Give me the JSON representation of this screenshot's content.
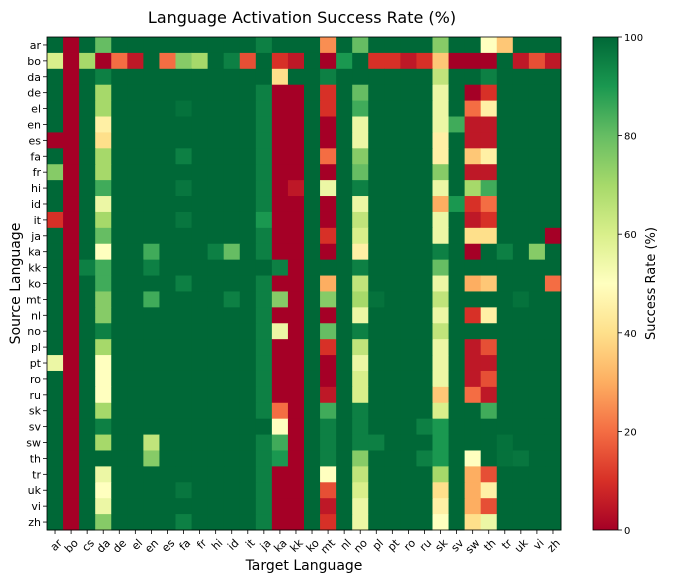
{
  "chart_data": {
    "type": "heatmap",
    "title": "Language Activation Success Rate (%)",
    "xlabel": "Target Language",
    "ylabel": "Source Language",
    "colorbar_label": "Success Rate (%)",
    "colormap": "RdYlGn",
    "vmin": 0,
    "vmax": 100,
    "colorbar_ticks": [
      "0",
      "20",
      "40",
      "60",
      "80",
      "100"
    ],
    "rows": [
      "ar",
      "bo",
      "da",
      "de",
      "el",
      "en",
      "es",
      "fa",
      "fr",
      "hi",
      "id",
      "it",
      "ja",
      "ka",
      "kk",
      "ko",
      "mt",
      "nl",
      "no",
      "pl",
      "pt",
      "ro",
      "ru",
      "sk",
      "sv",
      "sw",
      "th",
      "tr",
      "uk",
      "vi",
      "zh"
    ],
    "cols": [
      "ar",
      "bo",
      "cs",
      "da",
      "de",
      "el",
      "en",
      "es",
      "fa",
      "fr",
      "hi",
      "id",
      "it",
      "ja",
      "ka",
      "kk",
      "ko",
      "mt",
      "nl",
      "no",
      "pl",
      "pt",
      "ro",
      "ru",
      "sk",
      "sv",
      "sw",
      "th",
      "tr",
      "uk",
      "vi",
      "zh"
    ],
    "values": [
      [
        100,
        0,
        100,
        80,
        100,
        100,
        100,
        100,
        100,
        100,
        100,
        100,
        100,
        95,
        100,
        100,
        100,
        25,
        100,
        80,
        100,
        100,
        100,
        100,
        75,
        100,
        100,
        50,
        35,
        100,
        100,
        100
      ],
      [
        60,
        0,
        70,
        0,
        20,
        5,
        100,
        20,
        75,
        70,
        100,
        95,
        15,
        100,
        10,
        5,
        100,
        0,
        90,
        100,
        10,
        10,
        5,
        10,
        35,
        0,
        0,
        0,
        100,
        5,
        15,
        5
      ],
      [
        100,
        0,
        100,
        95,
        100,
        100,
        100,
        100,
        100,
        100,
        100,
        100,
        100,
        100,
        40,
        100,
        100,
        95,
        100,
        100,
        100,
        100,
        100,
        100,
        65,
        100,
        100,
        95,
        100,
        100,
        100,
        100
      ],
      [
        100,
        0,
        100,
        70,
        100,
        100,
        100,
        100,
        100,
        100,
        100,
        100,
        100,
        95,
        0,
        0,
        100,
        10,
        100,
        80,
        100,
        100,
        100,
        100,
        55,
        100,
        0,
        10,
        100,
        100,
        100,
        100
      ],
      [
        100,
        0,
        100,
        70,
        100,
        100,
        100,
        100,
        98,
        100,
        100,
        100,
        100,
        95,
        0,
        0,
        100,
        10,
        100,
        85,
        100,
        100,
        100,
        100,
        55,
        100,
        20,
        45,
        100,
        100,
        100,
        100
      ],
      [
        100,
        0,
        100,
        45,
        100,
        100,
        100,
        100,
        100,
        100,
        100,
        100,
        100,
        95,
        0,
        0,
        100,
        0,
        100,
        55,
        100,
        100,
        100,
        100,
        55,
        85,
        5,
        5,
        100,
        100,
        100,
        100
      ],
      [
        0,
        0,
        100,
        40,
        100,
        100,
        100,
        100,
        100,
        100,
        100,
        100,
        100,
        95,
        0,
        0,
        100,
        0,
        100,
        55,
        100,
        100,
        100,
        100,
        45,
        100,
        5,
        5,
        100,
        100,
        100,
        100
      ],
      [
        100,
        0,
        100,
        70,
        100,
        100,
        100,
        100,
        95,
        100,
        100,
        100,
        100,
        95,
        0,
        0,
        100,
        20,
        100,
        75,
        100,
        100,
        100,
        100,
        45,
        100,
        35,
        45,
        100,
        100,
        100,
        100
      ],
      [
        75,
        0,
        100,
        70,
        100,
        100,
        100,
        100,
        100,
        100,
        100,
        100,
        100,
        95,
        0,
        0,
        100,
        0,
        100,
        80,
        100,
        100,
        100,
        100,
        75,
        100,
        5,
        5,
        100,
        100,
        100,
        100
      ],
      [
        100,
        0,
        100,
        85,
        100,
        100,
        100,
        100,
        97,
        100,
        100,
        100,
        100,
        95,
        0,
        5,
        100,
        55,
        100,
        95,
        100,
        100,
        100,
        100,
        55,
        100,
        70,
        85,
        100,
        100,
        100,
        100
      ],
      [
        100,
        0,
        100,
        55,
        100,
        100,
        100,
        100,
        100,
        100,
        100,
        100,
        100,
        95,
        0,
        0,
        100,
        0,
        100,
        55,
        100,
        100,
        100,
        100,
        30,
        90,
        10,
        20,
        100,
        100,
        100,
        100
      ],
      [
        10,
        0,
        100,
        70,
        100,
        100,
        100,
        100,
        97,
        100,
        100,
        100,
        100,
        90,
        0,
        0,
        100,
        0,
        100,
        65,
        100,
        100,
        100,
        100,
        55,
        100,
        5,
        10,
        100,
        100,
        100,
        100
      ],
      [
        100,
        0,
        100,
        80,
        100,
        100,
        100,
        100,
        100,
        100,
        100,
        100,
        100,
        95,
        0,
        0,
        100,
        10,
        100,
        60,
        100,
        100,
        100,
        100,
        55,
        100,
        40,
        40,
        100,
        100,
        100,
        0
      ],
      [
        100,
        0,
        100,
        50,
        100,
        100,
        85,
        100,
        100,
        100,
        95,
        80,
        100,
        95,
        0,
        0,
        100,
        0,
        100,
        45,
        100,
        100,
        100,
        100,
        95,
        100,
        0,
        100,
        95,
        100,
        75,
        100
      ],
      [
        100,
        0,
        95,
        85,
        100,
        100,
        95,
        100,
        100,
        100,
        100,
        100,
        100,
        100,
        95,
        0,
        100,
        100,
        100,
        95,
        100,
        100,
        100,
        100,
        80,
        100,
        100,
        100,
        100,
        100,
        100,
        100
      ],
      [
        100,
        0,
        100,
        85,
        100,
        100,
        100,
        100,
        95,
        100,
        100,
        100,
        100,
        95,
        0,
        0,
        100,
        30,
        100,
        65,
        100,
        100,
        100,
        100,
        55,
        100,
        30,
        35,
        100,
        100,
        100,
        20
      ],
      [
        100,
        0,
        100,
        75,
        100,
        100,
        85,
        100,
        100,
        100,
        100,
        95,
        100,
        95,
        75,
        0,
        100,
        75,
        100,
        70,
        98,
        100,
        100,
        100,
        65,
        100,
        100,
        100,
        100,
        98,
        100,
        100
      ],
      [
        100,
        0,
        100,
        75,
        100,
        100,
        100,
        100,
        100,
        100,
        100,
        100,
        100,
        95,
        0,
        0,
        100,
        0,
        100,
        55,
        100,
        100,
        100,
        100,
        55,
        100,
        10,
        45,
        100,
        100,
        100,
        100
      ],
      [
        100,
        0,
        100,
        95,
        100,
        100,
        100,
        100,
        100,
        100,
        100,
        100,
        100,
        95,
        55,
        0,
        100,
        80,
        100,
        95,
        100,
        100,
        100,
        100,
        65,
        100,
        100,
        100,
        100,
        100,
        100,
        100
      ],
      [
        100,
        0,
        100,
        70,
        100,
        100,
        100,
        100,
        100,
        100,
        100,
        100,
        100,
        95,
        0,
        0,
        100,
        10,
        100,
        65,
        100,
        100,
        100,
        100,
        55,
        100,
        5,
        15,
        100,
        100,
        100,
        100
      ],
      [
        55,
        0,
        100,
        50,
        100,
        100,
        100,
        100,
        100,
        100,
        100,
        100,
        100,
        95,
        0,
        0,
        100,
        0,
        100,
        55,
        100,
        100,
        100,
        100,
        55,
        100,
        5,
        5,
        100,
        100,
        100,
        100
      ],
      [
        100,
        0,
        100,
        50,
        100,
        100,
        100,
        100,
        100,
        100,
        100,
        100,
        100,
        95,
        0,
        0,
        100,
        0,
        100,
        60,
        100,
        100,
        100,
        100,
        55,
        100,
        5,
        15,
        100,
        100,
        100,
        100
      ],
      [
        100,
        0,
        100,
        50,
        100,
        100,
        100,
        100,
        100,
        100,
        100,
        100,
        100,
        95,
        0,
        0,
        100,
        5,
        100,
        60,
        100,
        100,
        100,
        100,
        35,
        100,
        20,
        5,
        100,
        100,
        100,
        100
      ],
      [
        100,
        0,
        100,
        70,
        100,
        100,
        100,
        100,
        100,
        100,
        100,
        100,
        100,
        95,
        20,
        0,
        100,
        85,
        100,
        95,
        100,
        100,
        100,
        100,
        60,
        100,
        100,
        85,
        100,
        100,
        100,
        100
      ],
      [
        100,
        0,
        100,
        95,
        100,
        100,
        100,
        100,
        100,
        100,
        100,
        100,
        100,
        100,
        50,
        0,
        100,
        95,
        100,
        95,
        100,
        100,
        100,
        95,
        90,
        100,
        100,
        100,
        100,
        100,
        100,
        100
      ],
      [
        100,
        0,
        100,
        70,
        100,
        100,
        65,
        100,
        100,
        100,
        100,
        100,
        100,
        95,
        85,
        0,
        100,
        95,
        100,
        95,
        95,
        100,
        100,
        100,
        90,
        100,
        100,
        100,
        98,
        100,
        100,
        100
      ],
      [
        100,
        0,
        100,
        100,
        100,
        100,
        75,
        100,
        100,
        100,
        100,
        100,
        100,
        95,
        90,
        0,
        100,
        95,
        100,
        75,
        100,
        100,
        100,
        95,
        90,
        100,
        50,
        100,
        98,
        97,
        100,
        100
      ],
      [
        100,
        0,
        100,
        55,
        100,
        100,
        100,
        100,
        100,
        100,
        100,
        100,
        100,
        95,
        0,
        0,
        100,
        50,
        100,
        65,
        100,
        100,
        100,
        100,
        70,
        100,
        30,
        15,
        100,
        100,
        100,
        100
      ],
      [
        100,
        0,
        100,
        50,
        100,
        100,
        100,
        100,
        97,
        100,
        100,
        100,
        100,
        95,
        0,
        0,
        100,
        15,
        100,
        60,
        100,
        100,
        100,
        100,
        40,
        100,
        30,
        45,
        100,
        100,
        100,
        100
      ],
      [
        100,
        0,
        100,
        55,
        100,
        100,
        100,
        100,
        100,
        100,
        100,
        100,
        100,
        95,
        0,
        0,
        100,
        5,
        100,
        55,
        100,
        100,
        100,
        100,
        45,
        100,
        30,
        15,
        100,
        100,
        100,
        100
      ],
      [
        100,
        0,
        100,
        75,
        100,
        100,
        100,
        100,
        95,
        100,
        100,
        100,
        100,
        95,
        0,
        0,
        100,
        10,
        100,
        55,
        100,
        100,
        100,
        100,
        50,
        100,
        40,
        55,
        100,
        100,
        100,
        100
      ]
    ]
  }
}
